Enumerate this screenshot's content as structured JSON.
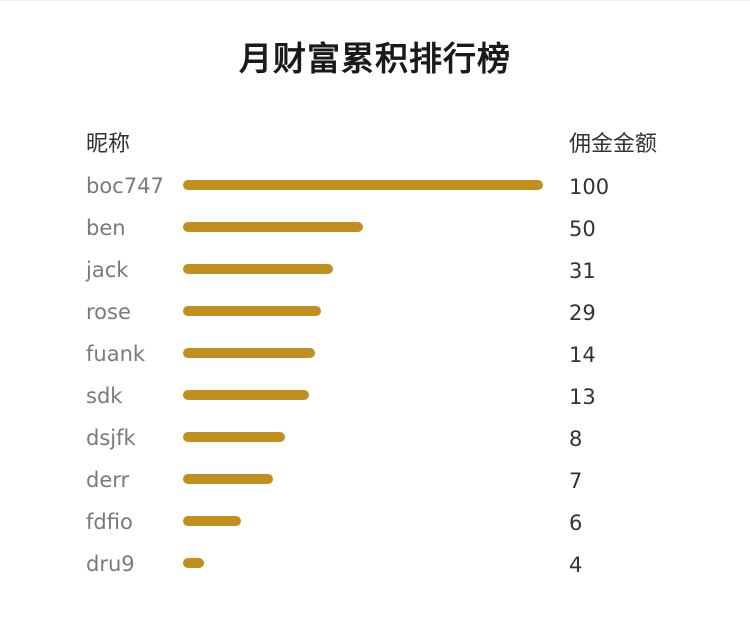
{
  "title": "月财富累积排行榜",
  "headers": {
    "name": "昵称",
    "amount": "佣金金额"
  },
  "colors": {
    "bar": "#c08f1e"
  },
  "chart_data": {
    "type": "bar",
    "categories": [
      "boc747",
      "ben",
      "jack",
      "rose",
      "fuank",
      "sdk",
      "dsjfk",
      "derr",
      "fdfio",
      "dru9"
    ],
    "values": [
      100,
      50,
      31,
      29,
      14,
      13,
      8,
      7,
      6,
      4
    ],
    "bar_fraction": [
      1.0,
      0.5,
      0.417,
      0.383,
      0.367,
      0.35,
      0.283,
      0.25,
      0.161,
      0.058
    ]
  },
  "rows": [
    {
      "name": "boc747",
      "amount": "100"
    },
    {
      "name": "ben",
      "amount": "50"
    },
    {
      "name": "jack",
      "amount": "31"
    },
    {
      "name": "rose",
      "amount": "29"
    },
    {
      "name": "fuank",
      "amount": "14"
    },
    {
      "name": "sdk",
      "amount": "13"
    },
    {
      "name": "dsjfk",
      "amount": "8"
    },
    {
      "name": "derr",
      "amount": "7"
    },
    {
      "name": "fdfio",
      "amount": "6"
    },
    {
      "name": "dru9",
      "amount": "4"
    }
  ]
}
